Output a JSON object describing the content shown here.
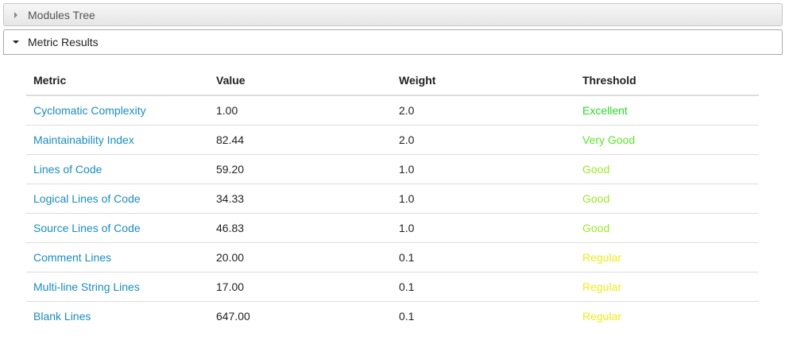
{
  "panels": {
    "modules_tree": {
      "title": "Modules Tree",
      "expanded": false
    },
    "metric_results": {
      "title": "Metric Results",
      "expanded": true
    }
  },
  "table": {
    "headers": [
      "Metric",
      "Value",
      "Weight",
      "Threshold"
    ],
    "rows": [
      {
        "metric": "Cyclomatic Complexity",
        "value": "1.00",
        "weight": "2.0",
        "threshold": "Excellent",
        "threshold_color": "#2ad92a"
      },
      {
        "metric": "Maintainability Index",
        "value": "82.44",
        "weight": "2.0",
        "threshold": "Very Good",
        "threshold_color": "#5fe52a"
      },
      {
        "metric": "Lines of Code",
        "value": "59.20",
        "weight": "1.0",
        "threshold": "Good",
        "threshold_color": "#9ce82a"
      },
      {
        "metric": "Logical Lines of Code",
        "value": "34.33",
        "weight": "1.0",
        "threshold": "Good",
        "threshold_color": "#9ce82a"
      },
      {
        "metric": "Source Lines of Code",
        "value": "46.83",
        "weight": "1.0",
        "threshold": "Good",
        "threshold_color": "#9ce82a"
      },
      {
        "metric": "Comment Lines",
        "value": "20.00",
        "weight": "0.1",
        "threshold": "Regular",
        "threshold_color": "#ecec1e"
      },
      {
        "metric": "Multi-line String Lines",
        "value": "17.00",
        "weight": "0.1",
        "threshold": "Regular",
        "threshold_color": "#ecec1e"
      },
      {
        "metric": "Blank Lines",
        "value": "647.00",
        "weight": "0.1",
        "threshold": "Regular",
        "threshold_color": "#ecec1e"
      }
    ]
  },
  "colors": {
    "link": "#1a8cbf",
    "header_border": "#c5c5c5"
  },
  "icons": {
    "collapsed": "triangle-right-icon",
    "expanded": "triangle-down-icon"
  }
}
